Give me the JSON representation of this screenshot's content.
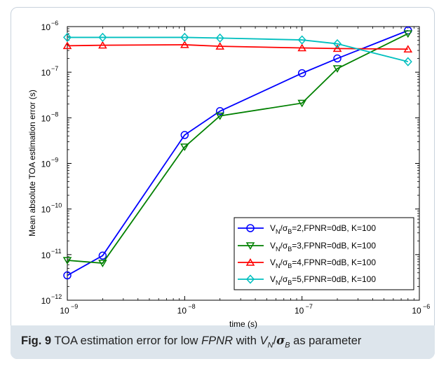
{
  "caption": {
    "fig_label": "Fig. 9",
    "text_1": " TOA estimation error for low ",
    "text_fpnr": "FPNR",
    "text_2": " with ",
    "v": "V",
    "n": "N",
    "slash": "/",
    "sigma": "σ",
    "b": "B",
    "text_3": " as parameter"
  },
  "chart_data": {
    "type": "line",
    "xlabel": "time (s)",
    "ylabel": "Mean absolute TOA estimation error (s)",
    "xscale": "log",
    "yscale": "log",
    "xlim": [
      1e-09,
      1e-06
    ],
    "ylim": [
      1e-12,
      1e-06
    ],
    "grid": false,
    "legend_position": "bottom-right",
    "x_ticks": [
      {
        "value": 1e-09,
        "base": "10",
        "exp": "−9"
      },
      {
        "value": 1e-08,
        "base": "10",
        "exp": "−8"
      },
      {
        "value": 1e-07,
        "base": "10",
        "exp": "−7"
      },
      {
        "value": 1e-06,
        "base": "10",
        "exp": "−6"
      }
    ],
    "y_ticks": [
      {
        "value": 1e-12,
        "base": "10",
        "exp": "−12"
      },
      {
        "value": 1e-11,
        "base": "10",
        "exp": "−11"
      },
      {
        "value": 1e-10,
        "base": "10",
        "exp": "−10"
      },
      {
        "value": 1e-09,
        "base": "10",
        "exp": "−9"
      },
      {
        "value": 1e-08,
        "base": "10",
        "exp": "−8"
      },
      {
        "value": 1e-07,
        "base": "10",
        "exp": "−7"
      },
      {
        "value": 1e-06,
        "base": "10",
        "exp": "−6"
      }
    ],
    "x": [
      1e-09,
      2e-09,
      1e-08,
      2e-08,
      1e-07,
      2e-07,
      8e-07
    ],
    "series": [
      {
        "name_v": "V",
        "name_n": "N",
        "name_mid": "/σ",
        "name_b": "B",
        "name_rest": "=2,FPNR=0dB, K=100",
        "color": "#0000ff",
        "marker": "circle",
        "values": [
          3.5e-12,
          9.5e-12,
          4.2e-09,
          1.4e-08,
          9.5e-08,
          2e-07,
          8.2e-07
        ]
      },
      {
        "name_v": "V",
        "name_n": "N",
        "name_mid": "/σ",
        "name_b": "B",
        "name_rest": "=3,FPNR=0dB, K=100",
        "color": "#008000",
        "marker": "triangle-down",
        "values": [
          7.5e-12,
          6.5e-12,
          2.3e-09,
          1.1e-08,
          2.1e-08,
          1.2e-07,
          7e-07
        ]
      },
      {
        "name_v": "V",
        "name_n": "N",
        "name_mid": "/σ",
        "name_b": "B",
        "name_rest": "=4,FPNR=0dB, K=100",
        "color": "#ff0000",
        "marker": "triangle-up",
        "values": [
          3.8e-07,
          3.9e-07,
          4e-07,
          3.7e-07,
          3.4e-07,
          3.3e-07,
          3.2e-07
        ]
      },
      {
        "name_v": "V",
        "name_n": "N",
        "name_mid": "/σ",
        "name_b": "B",
        "name_rest": "=5,FPNR=0dB, K=100",
        "color": "#00bfbf",
        "marker": "diamond",
        "values": [
          5.8e-07,
          5.8e-07,
          5.8e-07,
          5.6e-07,
          5.1e-07,
          4.2e-07,
          1.7e-07
        ]
      }
    ]
  }
}
